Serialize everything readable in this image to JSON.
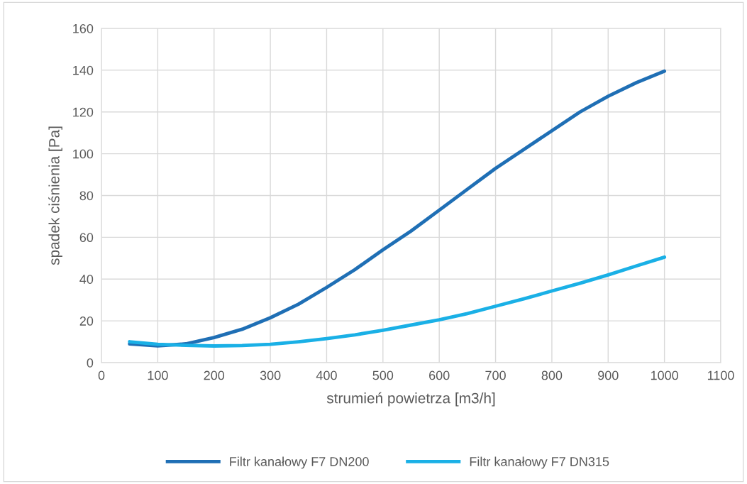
{
  "chart_data": {
    "type": "line",
    "xlabel": "strumień powietrza [m3/h]",
    "ylabel": "spadek ciśnienia [Pa]",
    "x": [
      50,
      100,
      150,
      200,
      250,
      300,
      350,
      400,
      450,
      500,
      550,
      600,
      650,
      700,
      750,
      800,
      850,
      900,
      950,
      1000
    ],
    "series": [
      {
        "name": "Filtr kanałowy F7 DN200",
        "color": "#1f6fb5",
        "values": [
          9,
          8,
          9,
          12,
          16,
          21.5,
          28,
          36,
          44.5,
          54,
          63,
          73,
          83,
          93,
          102,
          111,
          120,
          127.5,
          134,
          139.5
        ]
      },
      {
        "name": "Filtr kanałowy F7 DN315",
        "color": "#1ab0e6",
        "values": [
          10,
          8.8,
          8.3,
          8,
          8.2,
          8.8,
          10,
          11.5,
          13.3,
          15.5,
          18,
          20.5,
          23.5,
          27,
          30.5,
          34.3,
          38,
          42,
          46.3,
          50.5
        ]
      }
    ],
    "xlim": [
      0,
      1100
    ],
    "xticks": [
      0,
      100,
      200,
      300,
      400,
      500,
      600,
      700,
      800,
      900,
      1000,
      1100
    ],
    "ylim": [
      0,
      160
    ],
    "yticks": [
      0,
      20,
      40,
      60,
      80,
      100,
      120,
      140,
      160
    ],
    "grid": true,
    "legend": "bottom",
    "marker": "none",
    "line_style": "solid"
  }
}
